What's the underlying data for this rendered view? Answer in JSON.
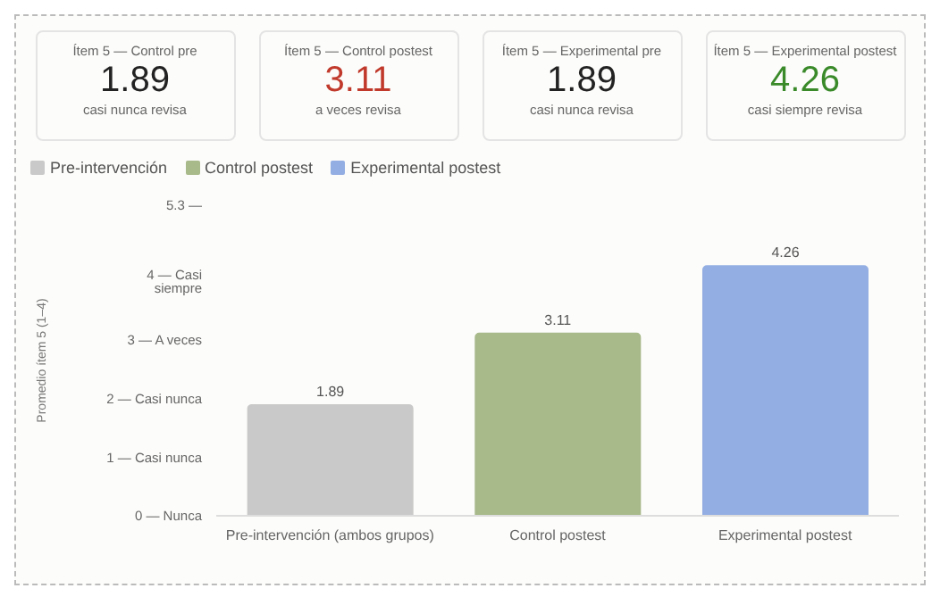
{
  "chart_data": [
    {
      "type": "other",
      "title": "Ítem 5 — Control pre",
      "values": [
        1.89
      ],
      "data_labels": true,
      "color": "#222222",
      "annotations": [
        "casi nunca revisa"
      ]
    },
    {
      "type": "other",
      "title": "Ítem 5 — Control postest",
      "values": [
        3.11
      ],
      "data_labels": true,
      "color": "#c0392b",
      "annotations": [
        "a veces revisa"
      ]
    },
    {
      "type": "other",
      "title": "Ítem 5 — Experimental pre",
      "values": [
        1.89
      ],
      "data_labels": true,
      "color": "#222222",
      "annotations": [
        "casi nunca revisa"
      ]
    },
    {
      "type": "other",
      "title": "Ítem 5 — Experimental postest",
      "values": [
        4.26
      ],
      "data_labels": true,
      "color": "#3a8a2a",
      "annotations": [
        "casi siempre revisa"
      ]
    },
    {
      "type": "bar",
      "categories": [
        "Pre-intervención (ambos grupos)",
        "Control postest",
        "Experimental postest"
      ],
      "stacked": true,
      "ylabel": "Promedio ítem 5 (1–4)",
      "ylim": [
        0,
        5.3
      ],
      "yticks": [
        {
          "value": 0,
          "label": "0 — Nunca"
        },
        {
          "value": 1,
          "label": "1 — Casi nunca"
        },
        {
          "value": 2,
          "label": "2 — Casi nunca"
        },
        {
          "value": 3,
          "label": "3 — A veces"
        },
        {
          "value": 4,
          "label": "4 — Casi siempre"
        },
        {
          "value": 5.3,
          "label": "5.3 —"
        }
      ],
      "grid": false,
      "legend": "top left",
      "data_labels": true,
      "series": [
        {
          "name": "Pre-intervención",
          "color": "#c9c9c9",
          "values": [
            1.89,
            null,
            null
          ]
        },
        {
          "name": "Control postest",
          "color": "#a8b98a",
          "values": [
            null,
            3.11,
            null
          ]
        },
        {
          "name": "Experimental postest",
          "color": "#93aee2",
          "values": [
            null,
            null,
            4.26
          ]
        }
      ]
    }
  ]
}
